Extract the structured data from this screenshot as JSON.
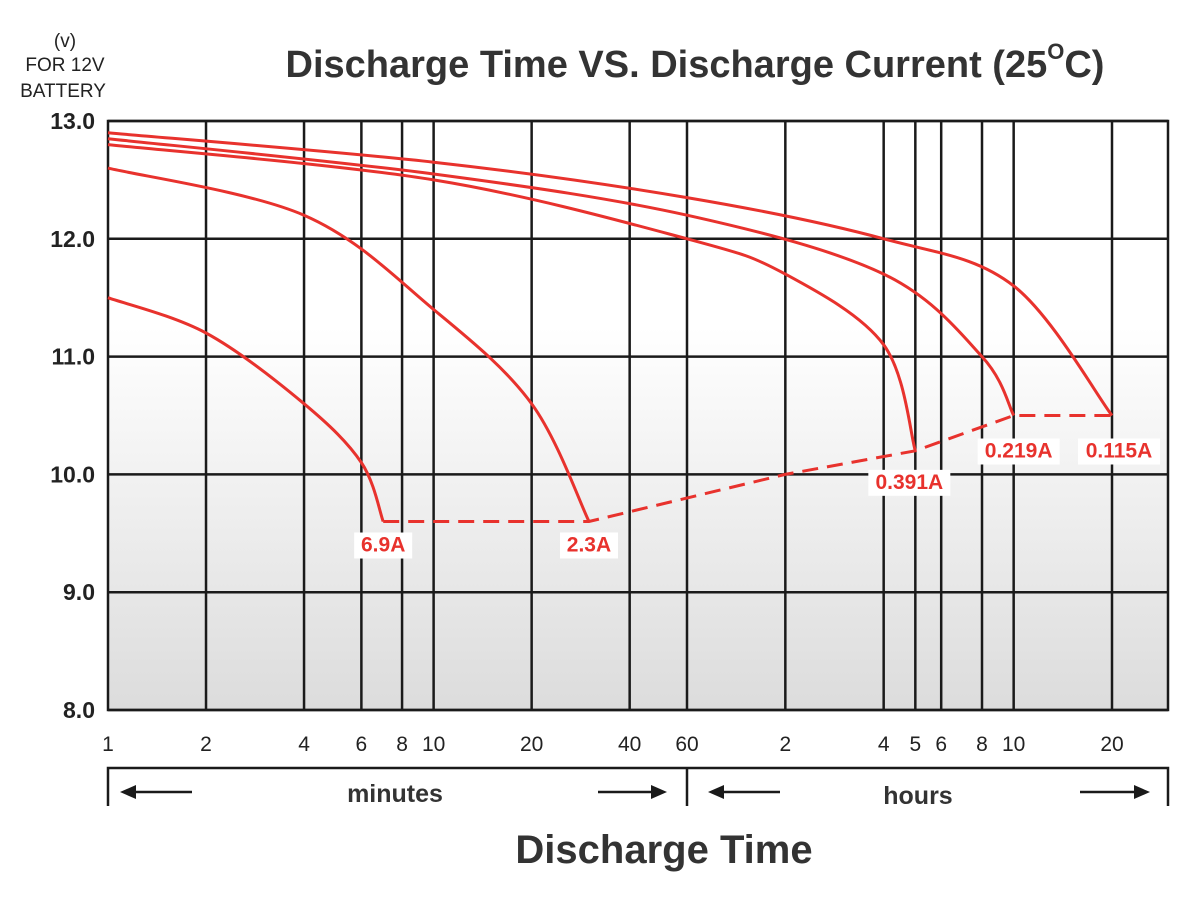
{
  "chart_data": {
    "type": "line",
    "title": "Discharge Time VS. Discharge Current (25°C)",
    "title_main": "Discharge Time VS. Discharge Current (25",
    "title_degree": "O",
    "title_tail": "C)",
    "ylabel_lines": [
      "(v)",
      "FOR 12V",
      "BATTERY"
    ],
    "xlabel": "Discharge Time",
    "x_scale": "log",
    "x_unit": "minutes",
    "xlim": [
      1,
      1800
    ],
    "ylim": [
      8.0,
      13.0
    ],
    "y_ticks": [
      "13.0",
      "12.0",
      "11.0",
      "10.0",
      "9.0",
      "8.0"
    ],
    "x_ticks": [
      {
        "minutes": 1,
        "label": "1"
      },
      {
        "minutes": 2,
        "label": "2"
      },
      {
        "minutes": 4,
        "label": "4"
      },
      {
        "minutes": 6,
        "label": "6"
      },
      {
        "minutes": 8,
        "label": "8"
      },
      {
        "minutes": 10,
        "label": "10"
      },
      {
        "minutes": 20,
        "label": "20"
      },
      {
        "minutes": 40,
        "label": "40"
      },
      {
        "minutes": 60,
        "label": "60"
      },
      {
        "minutes": 120,
        "label": "2"
      },
      {
        "minutes": 240,
        "label": "4"
      },
      {
        "minutes": 300,
        "label": "5"
      },
      {
        "minutes": 360,
        "label": "6"
      },
      {
        "minutes": 480,
        "label": "8"
      },
      {
        "minutes": 600,
        "label": "10"
      },
      {
        "minutes": 1200,
        "label": "20"
      }
    ],
    "bands": [
      {
        "label": "minutes",
        "from": 1,
        "to": 60
      },
      {
        "label": "hours",
        "from": 60,
        "to": 1800
      }
    ],
    "grid": true,
    "series": [
      {
        "name": "6.9A",
        "color": "#e8322d",
        "points": [
          [
            1,
            11.5
          ],
          [
            2,
            11.2
          ],
          [
            4,
            10.6
          ],
          [
            6,
            10.1
          ],
          [
            7,
            9.6
          ]
        ]
      },
      {
        "name": "2.3A",
        "color": "#e8322d",
        "points": [
          [
            1,
            12.6
          ],
          [
            4,
            12.2
          ],
          [
            10,
            11.4
          ],
          [
            20,
            10.6
          ],
          [
            30,
            9.6
          ]
        ]
      },
      {
        "name": "0.391A",
        "color": "#e8322d",
        "points": [
          [
            1,
            12.8
          ],
          [
            10,
            12.5
          ],
          [
            60,
            12.0
          ],
          [
            120,
            11.7
          ],
          [
            240,
            11.1
          ],
          [
            300,
            10.2
          ]
        ]
      },
      {
        "name": "0.219A",
        "color": "#e8322d",
        "points": [
          [
            1,
            12.85
          ],
          [
            10,
            12.55
          ],
          [
            60,
            12.2
          ],
          [
            240,
            11.7
          ],
          [
            480,
            11.0
          ],
          [
            600,
            10.5
          ]
        ]
      },
      {
        "name": "0.115A",
        "color": "#e8322d",
        "points": [
          [
            1,
            12.9
          ],
          [
            10,
            12.65
          ],
          [
            60,
            12.35
          ],
          [
            240,
            12.0
          ],
          [
            600,
            11.6
          ],
          [
            1200,
            10.5
          ]
        ]
      }
    ],
    "cutoff_line": {
      "style": "dashed",
      "color": "#e8322d",
      "points": [
        [
          7,
          9.6
        ],
        [
          30,
          9.6
        ],
        [
          120,
          10.0
        ],
        [
          300,
          10.2
        ],
        [
          600,
          10.5
        ],
        [
          1200,
          10.5
        ]
      ]
    }
  },
  "colors": {
    "curve": "#e8322d",
    "grid": "#1a1a1a",
    "plot_bg_top": "#ffffff",
    "plot_bg_bottom": "#dedede",
    "text": "#333333"
  }
}
